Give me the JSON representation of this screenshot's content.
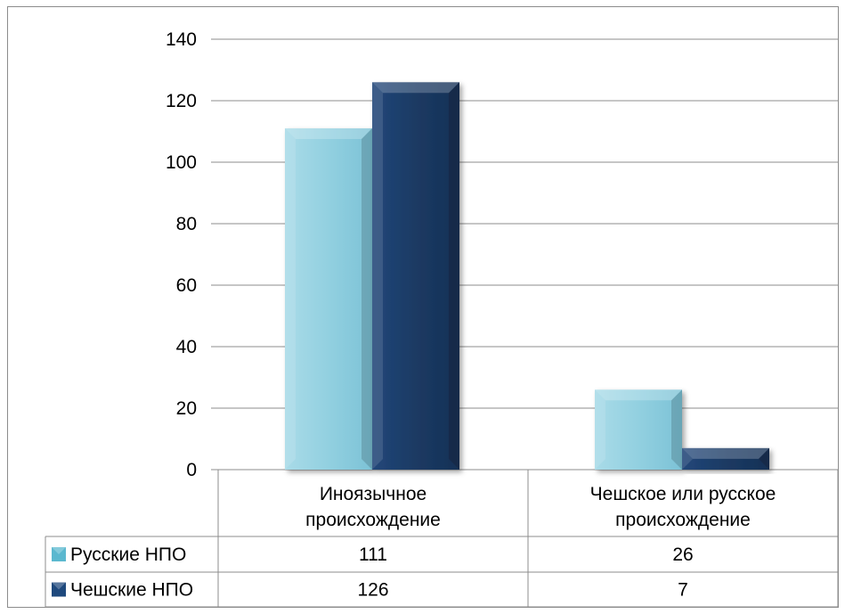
{
  "chart_data": {
    "type": "bar",
    "categories": [
      [
        "Иноязычное",
        "происхождение"
      ],
      [
        "Чешское или русское",
        "происхождение"
      ]
    ],
    "series": [
      {
        "name": "Русские НПО",
        "values": [
          111,
          26
        ],
        "color": "#92d0e0",
        "marker_color": "#5bb8cf"
      },
      {
        "name": "Чешские НПО",
        "values": [
          126,
          7
        ],
        "color": "#1b3a63",
        "marker_color": "#1f497d"
      }
    ],
    "ylim": [
      0,
      140
    ],
    "yticks": [
      0,
      20,
      40,
      60,
      80,
      100,
      120,
      140
    ],
    "grid": true,
    "legend": "data-table",
    "title": "",
    "xlabel": "",
    "ylabel": ""
  }
}
